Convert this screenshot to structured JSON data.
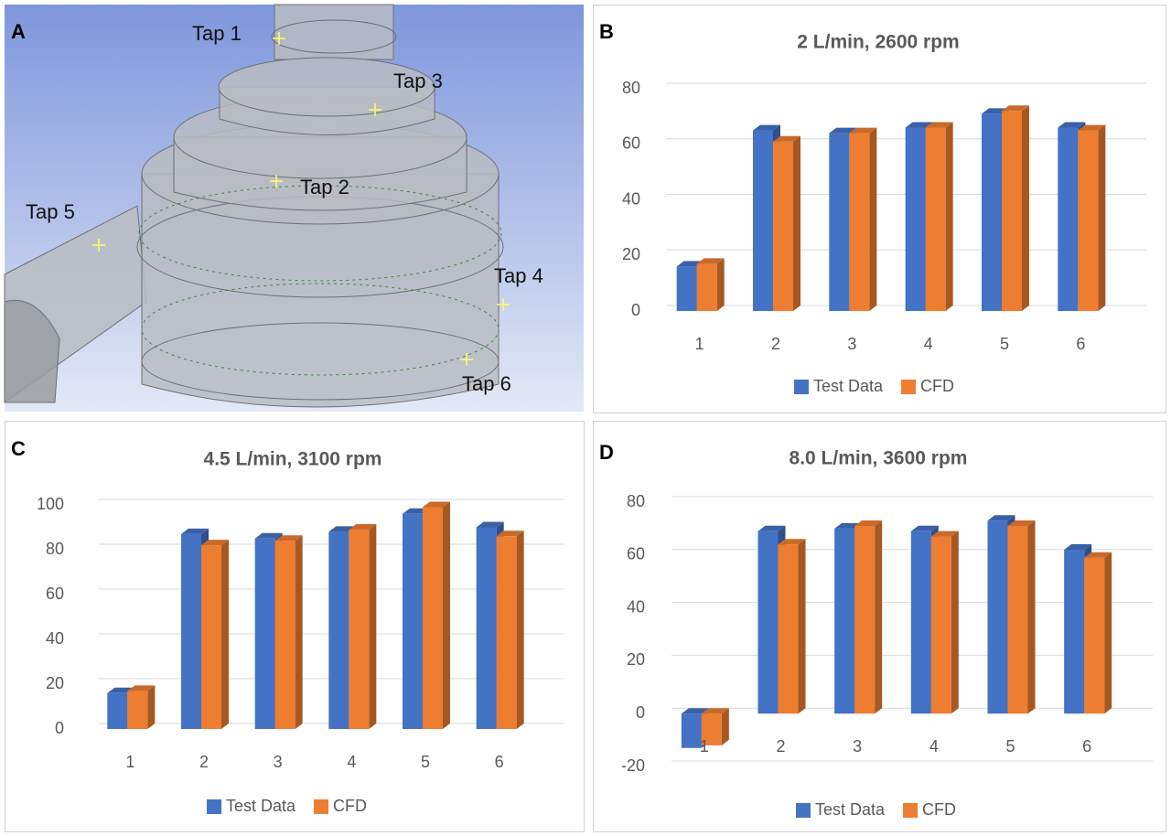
{
  "panel_a": {
    "label": "A",
    "taps": [
      "Tap 1",
      "Tap 3",
      "Tap 2",
      "Tap 5",
      "Tap 4",
      "Tap 6"
    ]
  },
  "chart_data": [
    {
      "type": "bar",
      "label": "B",
      "title": "2 L/min, 2600 rpm",
      "categories": [
        "1",
        "2",
        "3",
        "4",
        "5",
        "6"
      ],
      "series": [
        {
          "name": "Test Data",
          "color": "#4472c4",
          "values": [
            16,
            65,
            64,
            66,
            71,
            66
          ]
        },
        {
          "name": "CFD",
          "color": "#ed7d31",
          "values": [
            17,
            61,
            64,
            66,
            72,
            65
          ]
        }
      ],
      "ylim": [
        0,
        80
      ],
      "yticks": [
        0,
        20,
        40,
        60,
        80
      ],
      "grid": true,
      "legend": "bottom"
    },
    {
      "type": "bar",
      "label": "C",
      "title": "4.5 L/min, 3100 rpm",
      "categories": [
        "1",
        "2",
        "3",
        "4",
        "5",
        "6"
      ],
      "series": [
        {
          "name": "Test Data",
          "color": "#4472c4",
          "values": [
            16,
            87,
            85,
            88,
            96,
            90
          ]
        },
        {
          "name": "CFD",
          "color": "#ed7d31",
          "values": [
            17,
            82,
            84,
            89,
            99,
            86
          ]
        }
      ],
      "ylim": [
        0,
        100
      ],
      "yticks": [
        0,
        20,
        40,
        60,
        80,
        100
      ],
      "grid": true,
      "legend": "bottom"
    },
    {
      "type": "bar",
      "label": "D",
      "title": "8.0 L/min, 3600 rpm",
      "categories": [
        "1",
        "2",
        "3",
        "4",
        "5",
        "6"
      ],
      "series": [
        {
          "name": "Test Data",
          "color": "#4472c4",
          "values": [
            -13,
            69,
            70,
            69,
            73,
            62
          ]
        },
        {
          "name": "CFD",
          "color": "#ed7d31",
          "values": [
            -12,
            64,
            71,
            67,
            71,
            59
          ]
        }
      ],
      "ylim": [
        -20,
        80
      ],
      "yticks": [
        -20,
        0,
        20,
        40,
        60,
        80
      ],
      "grid": true,
      "legend": "bottom"
    }
  ]
}
